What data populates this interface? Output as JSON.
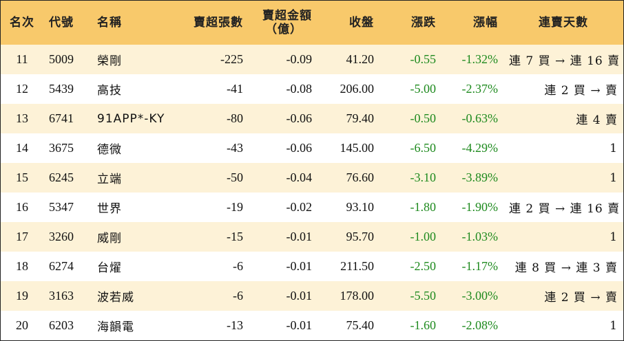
{
  "headers": {
    "rank": "名次",
    "code": "代號",
    "name": "名稱",
    "net_sell_lots": "賣超張數",
    "net_sell_amount_line1": "賣超金額",
    "net_sell_amount_line2": "（億）",
    "close": "收盤",
    "change": "漲跌",
    "change_pct": "漲幅",
    "streak": "連賣天數"
  },
  "rows": [
    {
      "rank": "11",
      "code": "5009",
      "name": "榮剛",
      "lots": "-225",
      "amount": "-0.09",
      "close": "41.20",
      "change": "-0.55",
      "pct": "-1.32%",
      "streak": "連 7 買 → 連 16 賣"
    },
    {
      "rank": "12",
      "code": "5439",
      "name": "高技",
      "lots": "-41",
      "amount": "-0.08",
      "close": "206.00",
      "change": "-5.00",
      "pct": "-2.37%",
      "streak": "連 2 買 → 賣"
    },
    {
      "rank": "13",
      "code": "6741",
      "name": "91APP*-KY",
      "lots": "-80",
      "amount": "-0.06",
      "close": "79.40",
      "change": "-0.50",
      "pct": "-0.63%",
      "streak": "連 4 賣"
    },
    {
      "rank": "14",
      "code": "3675",
      "name": "德微",
      "lots": "-43",
      "amount": "-0.06",
      "close": "145.00",
      "change": "-6.50",
      "pct": "-4.29%",
      "streak": "1"
    },
    {
      "rank": "15",
      "code": "6245",
      "name": "立端",
      "lots": "-50",
      "amount": "-0.04",
      "close": "76.60",
      "change": "-3.10",
      "pct": "-3.89%",
      "streak": "1"
    },
    {
      "rank": "16",
      "code": "5347",
      "name": "世界",
      "lots": "-19",
      "amount": "-0.02",
      "close": "93.10",
      "change": "-1.80",
      "pct": "-1.90%",
      "streak": "連 2 買 → 連 16 賣"
    },
    {
      "rank": "17",
      "code": "3260",
      "name": "威剛",
      "lots": "-15",
      "amount": "-0.01",
      "close": "95.70",
      "change": "-1.00",
      "pct": "-1.03%",
      "streak": "1"
    },
    {
      "rank": "18",
      "code": "6274",
      "name": "台燿",
      "lots": "-6",
      "amount": "-0.01",
      "close": "211.50",
      "change": "-2.50",
      "pct": "-1.17%",
      "streak": "連 8 買 → 連 3 賣"
    },
    {
      "rank": "19",
      "code": "3163",
      "name": "波若威",
      "lots": "-6",
      "amount": "-0.01",
      "close": "178.00",
      "change": "-5.50",
      "pct": "-3.00%",
      "streak": "連 2 買 → 賣"
    },
    {
      "rank": "20",
      "code": "6203",
      "name": "海韻電",
      "lots": "-13",
      "amount": "-0.01",
      "close": "75.40",
      "change": "-1.60",
      "pct": "-2.08%",
      "streak": "1"
    }
  ],
  "colors": {
    "header_bg": "#f8c96b",
    "odd_row_bg": "#fdf2d7",
    "even_row_bg": "#ffffff",
    "negative_change": "#1e8a1e"
  }
}
